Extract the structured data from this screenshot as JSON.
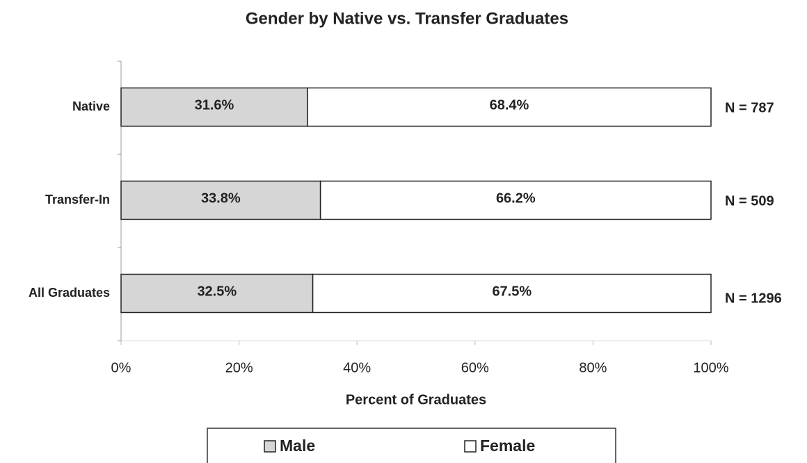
{
  "chart_data": {
    "type": "stacked-barh",
    "title": "Gender by Native vs. Transfer Graduates",
    "xlabel": "Percent of Graduates",
    "categories": [
      "Native",
      "Transfer-In",
      "All Graduates"
    ],
    "series": [
      {
        "name": "Male",
        "color": "#d6d6d6",
        "values": [
          31.6,
          33.8,
          32.5
        ],
        "value_labels": [
          "31.6%",
          "33.8%",
          "32.5%"
        ]
      },
      {
        "name": "Female",
        "color": "#ffffff",
        "values": [
          68.4,
          66.2,
          67.5
        ],
        "value_labels": [
          "68.4%",
          "66.2%",
          "67.5%"
        ]
      }
    ],
    "annotations": [
      "N = 787",
      "N = 509",
      "N = 1296"
    ],
    "xlim": [
      0,
      100
    ],
    "xticks": [
      {
        "value": 0,
        "label": "0%"
      },
      {
        "value": 20,
        "label": "20%"
      },
      {
        "value": 40,
        "label": "40%"
      },
      {
        "value": 60,
        "label": "60%"
      },
      {
        "value": 80,
        "label": "80%"
      },
      {
        "value": 100,
        "label": "100%"
      }
    ],
    "legend": "bottom"
  }
}
